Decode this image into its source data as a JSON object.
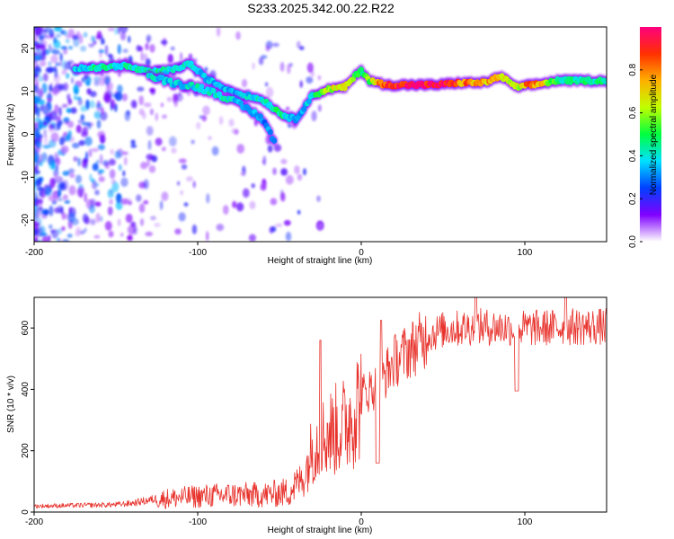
{
  "page_title": "S233.2025.342.00.22.R22",
  "colors": {
    "snr_line": "#e8322c",
    "frame": "#000000"
  },
  "chart_data": [
    {
      "id": "spectrogram",
      "type": "heatmap",
      "xlabel": "Height of straight line (km)",
      "ylabel": "Frequency (Hz)",
      "xlim": [
        -200,
        150
      ],
      "ylim": [
        -25,
        25
      ],
      "x_ticks": [
        -200,
        -100,
        0,
        100
      ],
      "y_ticks": [
        -20,
        -10,
        0,
        10,
        20
      ],
      "colorbar": {
        "label": "Normalized spectral amplitude",
        "range": [
          0,
          1
        ],
        "ticks": [
          0.0,
          0.2,
          0.4,
          0.6,
          0.8
        ],
        "tick_labels": [
          "0.0",
          "0.2",
          "0.4",
          "0.6",
          "0.8"
        ],
        "colormap": [
          "#ffffff",
          "#8000ff",
          "#0040ff",
          "#00e0ff",
          "#00ff40",
          "#c0ff00",
          "#ffb000",
          "#ff3000",
          "#ff0080"
        ]
      },
      "main_track": [
        {
          "x": -175,
          "y": 15.5,
          "a": 0.35
        },
        {
          "x": -160,
          "y": 15.5,
          "a": 0.45
        },
        {
          "x": -145,
          "y": 16.0,
          "a": 0.4
        },
        {
          "x": -130,
          "y": 14.5,
          "a": 0.45
        },
        {
          "x": -115,
          "y": 15.0,
          "a": 0.4
        },
        {
          "x": -105,
          "y": 16.5,
          "a": 0.4
        },
        {
          "x": -95,
          "y": 13.0,
          "a": 0.35
        },
        {
          "x": -85,
          "y": 11.0,
          "a": 0.35
        },
        {
          "x": -75,
          "y": 9.5,
          "a": 0.35
        },
        {
          "x": -60,
          "y": 8.0,
          "a": 0.4
        },
        {
          "x": -50,
          "y": 5.0,
          "a": 0.45
        },
        {
          "x": -45,
          "y": 4.0,
          "a": 0.4
        },
        {
          "x": -40,
          "y": 3.5,
          "a": 0.3
        },
        {
          "x": -30,
          "y": 9.0,
          "a": 0.4
        },
        {
          "x": -20,
          "y": 10.5,
          "a": 0.6
        },
        {
          "x": -10,
          "y": 11.0,
          "a": 0.7
        },
        {
          "x": 0,
          "y": 15.0,
          "a": 0.45
        },
        {
          "x": 5,
          "y": 12.5,
          "a": 0.55
        },
        {
          "x": 15,
          "y": 11.5,
          "a": 0.9
        },
        {
          "x": 30,
          "y": 11.5,
          "a": 1.0
        },
        {
          "x": 45,
          "y": 11.5,
          "a": 0.95
        },
        {
          "x": 60,
          "y": 12.0,
          "a": 0.8
        },
        {
          "x": 75,
          "y": 12.0,
          "a": 0.75
        },
        {
          "x": 85,
          "y": 13.5,
          "a": 0.7
        },
        {
          "x": 95,
          "y": 11.0,
          "a": 0.6
        },
        {
          "x": 105,
          "y": 11.5,
          "a": 0.85
        },
        {
          "x": 120,
          "y": 12.5,
          "a": 0.45
        },
        {
          "x": 135,
          "y": 12.5,
          "a": 0.45
        },
        {
          "x": 150,
          "y": 12.5,
          "a": 0.45
        }
      ],
      "branch_track": [
        {
          "x": -130,
          "y": 13.5,
          "a": 0.4
        },
        {
          "x": -115,
          "y": 12.0,
          "a": 0.35
        },
        {
          "x": -100,
          "y": 11.0,
          "a": 0.4
        },
        {
          "x": -85,
          "y": 9.0,
          "a": 0.4
        },
        {
          "x": -70,
          "y": 6.0,
          "a": 0.35
        },
        {
          "x": -60,
          "y": 3.5,
          "a": 0.3
        },
        {
          "x": -52,
          "y": -2.5,
          "a": 0.35
        }
      ]
    },
    {
      "id": "snr",
      "type": "line",
      "xlabel": "Height of straight line (km)",
      "ylabel": "SNR (10 * v/v)",
      "xlim": [
        -200,
        150
      ],
      "ylim": [
        0,
        700
      ],
      "x_ticks": [
        -200,
        -100,
        0,
        100
      ],
      "y_ticks": [
        0,
        200,
        400,
        600
      ],
      "envelope": [
        {
          "x": -200,
          "y": 20
        },
        {
          "x": -150,
          "y": 25
        },
        {
          "x": -140,
          "y": 30
        },
        {
          "x": -125,
          "y": 45
        },
        {
          "x": -100,
          "y": 55
        },
        {
          "x": -80,
          "y": 60
        },
        {
          "x": -60,
          "y": 60
        },
        {
          "x": -45,
          "y": 70
        },
        {
          "x": -35,
          "y": 120
        },
        {
          "x": -30,
          "y": 220
        },
        {
          "x": -25,
          "y": 250
        },
        {
          "x": -20,
          "y": 270
        },
        {
          "x": -10,
          "y": 300
        },
        {
          "x": 0,
          "y": 390
        },
        {
          "x": 10,
          "y": 420
        },
        {
          "x": 20,
          "y": 500
        },
        {
          "x": 30,
          "y": 540
        },
        {
          "x": 40,
          "y": 580
        },
        {
          "x": 50,
          "y": 600
        },
        {
          "x": 70,
          "y": 610
        },
        {
          "x": 100,
          "y": 605
        },
        {
          "x": 130,
          "y": 610
        },
        {
          "x": 150,
          "y": 610
        }
      ],
      "dips": [
        {
          "x": 10,
          "y": 160
        },
        {
          "x": 95,
          "y": 395
        }
      ],
      "spikes": [
        {
          "x": -25,
          "y": 560
        },
        {
          "x": 12,
          "y": 625
        },
        {
          "x": 70,
          "y": 700
        },
        {
          "x": 125,
          "y": 700
        }
      ]
    }
  ]
}
